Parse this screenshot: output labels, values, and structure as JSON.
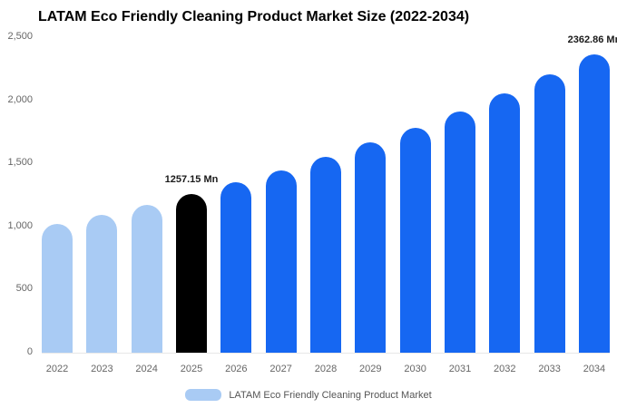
{
  "chart_data": {
    "type": "bar",
    "title": "LATAM Eco Friendly Cleaning Product Market Size (2022-2034)",
    "categories": [
      "2022",
      "2023",
      "2024",
      "2025",
      "2026",
      "2027",
      "2028",
      "2029",
      "2030",
      "2031",
      "2032",
      "2033",
      "2034"
    ],
    "values": [
      1019,
      1093,
      1172,
      1257.15,
      1348,
      1446,
      1551,
      1664,
      1785,
      1914,
      2053,
      2202,
      2362.86
    ],
    "value_labels": [
      "",
      "",
      "",
      "1257.15 Mn",
      "",
      "",
      "",
      "",
      "",
      "",
      "",
      "",
      "2362.86 Mn"
    ],
    "bar_roles": [
      "light",
      "light",
      "light",
      "highlight",
      "primary",
      "primary",
      "primary",
      "primary",
      "primary",
      "primary",
      "primary",
      "primary",
      "primary"
    ],
    "colors": {
      "light": "#A9CBF4",
      "highlight": "#000000",
      "primary": "#1667F2"
    },
    "ylim": [
      0,
      2500
    ],
    "yticks": [
      {
        "value": 0,
        "label": "0"
      },
      {
        "value": 500,
        "label": "500"
      },
      {
        "value": 1000,
        "label": "1,000"
      },
      {
        "value": 1500,
        "label": "1,500"
      },
      {
        "value": 2000,
        "label": "2,000"
      },
      {
        "value": 2500,
        "label": "2,500"
      }
    ],
    "grid": false,
    "legend_position": "bottom",
    "legend": [
      {
        "label": "LATAM Eco Friendly Cleaning Product Market",
        "color": "#A9CBF4"
      }
    ]
  }
}
